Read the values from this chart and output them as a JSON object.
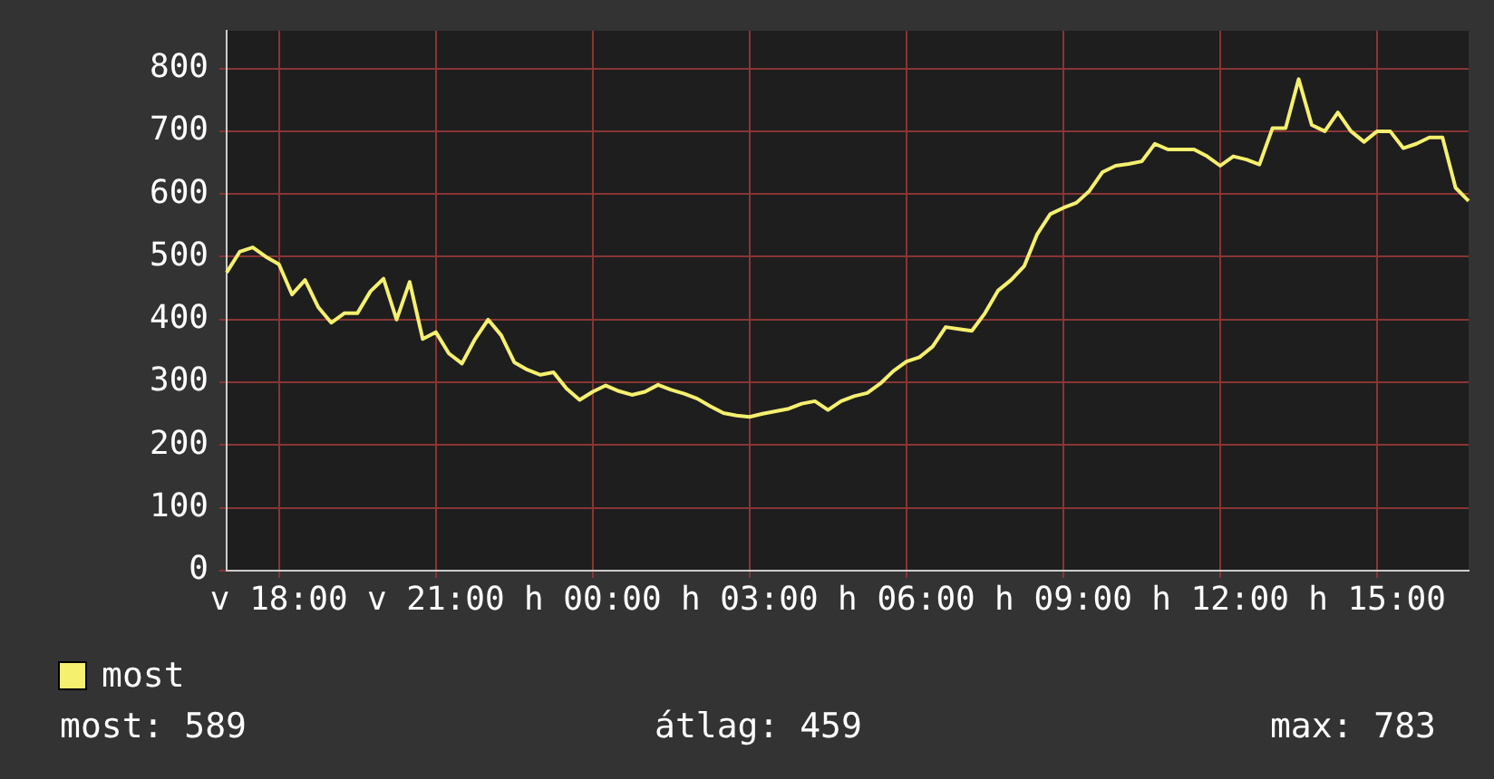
{
  "chart_data": {
    "type": "line",
    "categories": [
      null,
      null,
      null,
      null,
      "v 18:00",
      null,
      null,
      null,
      null,
      null,
      null,
      null,
      null,
      null,
      null,
      null,
      "v 21:00",
      null,
      null,
      null,
      null,
      null,
      null,
      null,
      null,
      null,
      null,
      null,
      "h 00:00",
      null,
      null,
      null,
      null,
      null,
      null,
      null,
      null,
      null,
      null,
      null,
      "h 03:00",
      null,
      null,
      null,
      null,
      null,
      null,
      null,
      null,
      null,
      null,
      null,
      "h 06:00",
      null,
      null,
      null,
      null,
      null,
      null,
      null,
      null,
      null,
      null,
      null,
      "h 09:00",
      null,
      null,
      null,
      null,
      null,
      null,
      null,
      null,
      null,
      null,
      null,
      "h 12:00",
      null,
      null,
      null,
      null,
      null,
      null,
      null,
      null,
      null,
      null,
      null,
      "h 15:00",
      null,
      null,
      null,
      null,
      null,
      null,
      null
    ],
    "series": [
      {
        "name": "most",
        "color": "#f5f06e",
        "values": [
          475,
          508,
          515,
          500,
          488,
          440,
          463,
          420,
          395,
          410,
          410,
          445,
          465,
          400,
          460,
          369,
          380,
          346,
          330,
          369,
          400,
          375,
          332,
          320,
          312,
          316,
          290,
          272,
          285,
          295,
          286,
          280,
          285,
          296,
          288,
          282,
          274,
          262,
          251,
          247,
          245,
          250,
          254,
          258,
          266,
          270,
          256,
          270,
          278,
          283,
          298,
          318,
          333,
          340,
          357,
          388,
          385,
          382,
          410,
          446,
          463,
          485,
          536,
          568,
          578,
          586,
          605,
          635,
          645,
          648,
          652,
          680,
          671,
          671,
          671,
          660,
          645,
          660,
          655,
          647,
          705,
          705,
          783,
          710,
          700,
          730,
          700,
          683,
          700,
          700,
          673,
          680,
          690,
          690,
          610,
          589
        ]
      }
    ],
    "ylim": [
      0,
      860
    ],
    "yticks": [
      0,
      100,
      200,
      300,
      400,
      500,
      600,
      700,
      800
    ],
    "grid": true,
    "legend": "bottom left",
    "marker": "none",
    "line_style": "solid",
    "annotations": [
      "most: 589",
      "átlag: 459",
      "max: 783"
    ]
  }
}
